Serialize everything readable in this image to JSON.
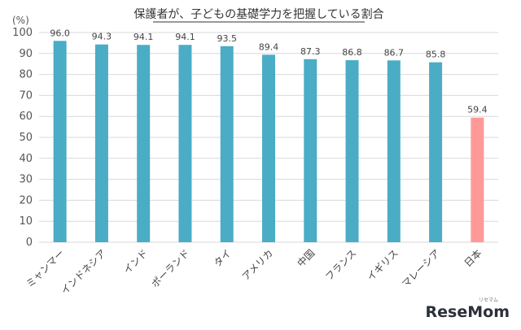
{
  "chart_data": {
    "type": "bar",
    "title": "保護者が、子どもの基礎学力を把握している割合",
    "ylabel": "(%)",
    "ylim": [
      0,
      100
    ],
    "yticks": [
      0,
      10,
      20,
      30,
      40,
      50,
      60,
      70,
      80,
      90,
      100
    ],
    "categories": [
      "ミャンマー",
      "インドネシア",
      "インド",
      "ポーランド",
      "タイ",
      "アメリカ",
      "中国",
      "フランス",
      "イギリス",
      "マレーシア",
      "日本"
    ],
    "values": [
      96.0,
      94.3,
      94.1,
      94.1,
      93.5,
      89.4,
      87.3,
      86.8,
      86.7,
      85.8,
      59.4
    ],
    "value_labels": [
      "96.0",
      "94.3",
      "94.1",
      "94.1",
      "93.5",
      "89.4",
      "87.3",
      "86.8",
      "86.7",
      "85.8",
      "59.4"
    ],
    "grid": true,
    "legend": "none",
    "colors": {
      "bar": "#4bacc6",
      "highlight_bar": "#ff9999",
      "grid": "#d9d9d9"
    },
    "highlight_category": "日本"
  },
  "logo": {
    "text": "ReseMom",
    "sub": "リセマム"
  }
}
